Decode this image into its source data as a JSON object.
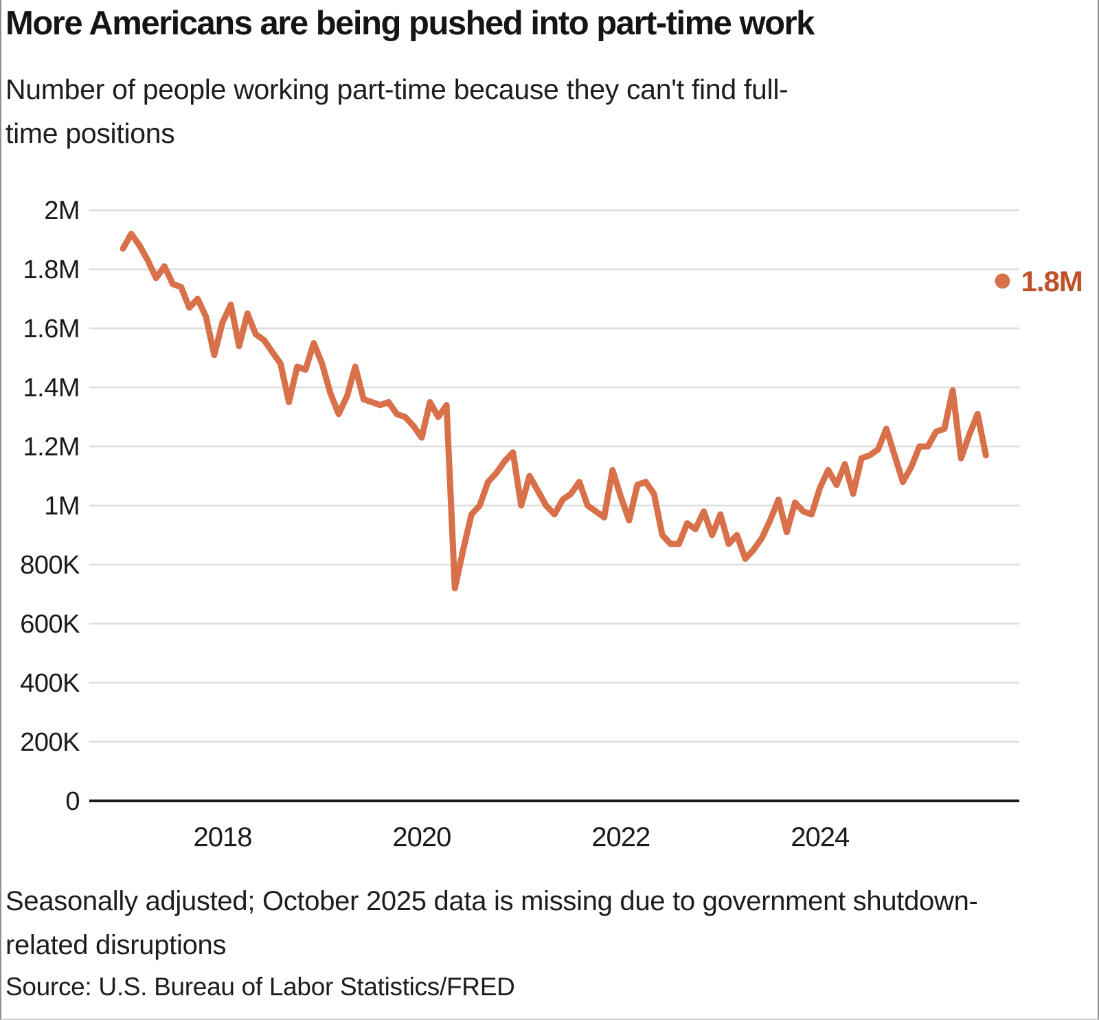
{
  "header": {
    "title": "More Americans are being pushed into part-time work",
    "subtitle_lines": [
      "Number of people working part-time because they can't find full-",
      "time positions"
    ]
  },
  "footer": {
    "note_lines": [
      "Seasonally adjusted; October 2025 data is missing due to government shutdown-",
      "related disruptions"
    ],
    "source": "Source: U.S. Bureau of Labor Statistics/FRED"
  },
  "chart_data": {
    "type": "line",
    "title": "More Americans are being pushed into part-time work",
    "xlabel": "",
    "ylabel": "",
    "frequency": "monthly",
    "x_start": {
      "year": 2017,
      "month": 1
    },
    "x_end": {
      "year": 2025,
      "month": 9
    },
    "ylim": [
      0,
      2000000
    ],
    "grid": "horizontal",
    "legend": "none",
    "values_millions": [
      1.87,
      1.92,
      1.88,
      1.83,
      1.77,
      1.81,
      1.75,
      1.74,
      1.67,
      1.7,
      1.64,
      1.51,
      1.62,
      1.68,
      1.54,
      1.65,
      1.58,
      1.56,
      1.52,
      1.48,
      1.35,
      1.47,
      1.46,
      1.55,
      1.48,
      1.38,
      1.31,
      1.37,
      1.47,
      1.36,
      1.35,
      1.34,
      1.35,
      1.31,
      1.3,
      1.27,
      1.23,
      1.35,
      1.3,
      1.34,
      0.72,
      0.85,
      0.97,
      1.0,
      1.08,
      1.11,
      1.15,
      1.18,
      1.0,
      1.1,
      1.05,
      1.0,
      0.97,
      1.02,
      1.04,
      1.08,
      1.0,
      0.98,
      0.96,
      1.12,
      1.03,
      0.95,
      1.07,
      1.08,
      1.04,
      0.9,
      0.87,
      0.87,
      0.94,
      0.92,
      0.98,
      0.9,
      0.97,
      0.87,
      0.9,
      0.82,
      0.85,
      0.89,
      0.95,
      1.02,
      0.91,
      1.01,
      0.98,
      0.97,
      1.06,
      1.12,
      1.07,
      1.14,
      1.04,
      1.16,
      1.17,
      1.19,
      1.26,
      1.17,
      1.08,
      1.13,
      1.2,
      1.2,
      1.25,
      1.26,
      1.39,
      1.16,
      1.24,
      1.31,
      1.17
    ],
    "end_dot": {
      "months_after_start": 106,
      "value_millions": 1.76,
      "label": "1.8M"
    },
    "y_ticks": [
      {
        "label": "2M",
        "value": 2.0
      },
      {
        "label": "1.8M",
        "value": 1.8
      },
      {
        "label": "1.6M",
        "value": 1.6
      },
      {
        "label": "1.4M",
        "value": 1.4
      },
      {
        "label": "1.2M",
        "value": 1.2
      },
      {
        "label": "1M",
        "value": 1.0
      },
      {
        "label": "800K",
        "value": 0.8
      },
      {
        "label": "600K",
        "value": 0.6
      },
      {
        "label": "400K",
        "value": 0.4
      },
      {
        "label": "200K",
        "value": 0.2
      },
      {
        "label": "0",
        "value": 0.0
      }
    ],
    "x_ticks": [
      {
        "label": "2018",
        "month_index": 12
      },
      {
        "label": "2020",
        "month_index": 36
      },
      {
        "label": "2022",
        "month_index": 60
      },
      {
        "label": "2024",
        "month_index": 84
      }
    ],
    "colors": {
      "line": "#D8704A",
      "dot": "#D8704A",
      "end_label": "#BE5127",
      "grid": "#DCDCDC",
      "axis": "#1A1A1A",
      "text": "#1A1A1A"
    }
  }
}
